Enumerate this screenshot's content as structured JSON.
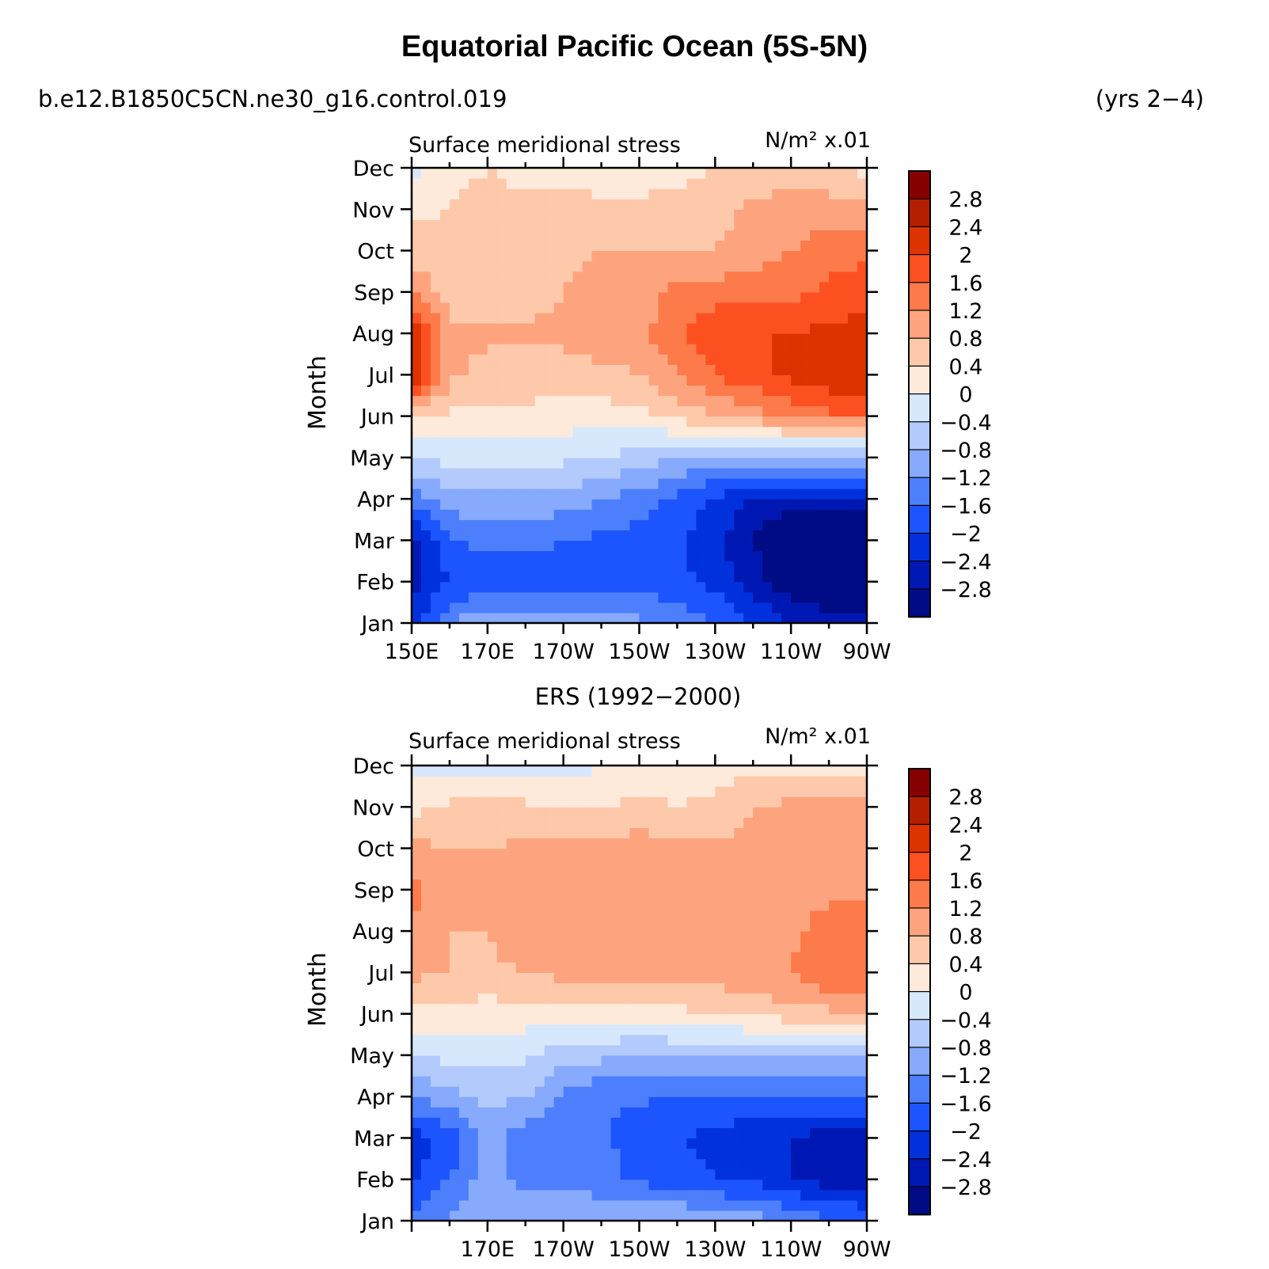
{
  "page": {
    "title": "Equatorial Pacific Ocean (5S-5N)",
    "case_name": "b.e12.B1850C5CN.ne30_g16.control.019",
    "years": "(yrs 2−4)"
  },
  "colorbar": {
    "levels": [
      "2.8",
      "2.4",
      "2",
      "1.6",
      "1.2",
      "0.8",
      "0.4",
      "0",
      "−0.4",
      "−0.8",
      "−1.2",
      "−1.6",
      "−2",
      "−2.4",
      "−2.8"
    ],
    "colors": [
      "#870000",
      "#b51f00",
      "#dd3300",
      "#fd5020",
      "#fd7a4a",
      "#fda47e",
      "#fdc9aa",
      "#feeadb",
      "#d7e8fd",
      "#b3cafd",
      "#87aafd",
      "#4d7ffd",
      "#1c54fd",
      "#0131dd",
      "#0018b3",
      "#000c85"
    ]
  },
  "chart_data": [
    {
      "type": "heatmap",
      "title": "Surface meridional stress",
      "units": "N/m² x.01",
      "xlabel": "",
      "ylabel": "Month",
      "x_tick_labels": [
        "150E",
        "170E",
        "170W",
        "150W",
        "130W",
        "110W",
        "90W"
      ],
      "y_tick_labels": [
        "Jan",
        "Feb",
        "Mar",
        "Apr",
        "May",
        "Jun",
        "Jul",
        "Aug",
        "Sep",
        "Oct",
        "Nov",
        "Dec"
      ],
      "x_range_deg_east": [
        150,
        270
      ],
      "x": [
        150,
        160,
        170,
        180,
        190,
        200,
        210,
        220,
        230,
        240,
        250,
        260,
        270
      ],
      "months": [
        "Jan",
        "Feb",
        "Mar",
        "Apr",
        "May",
        "Jun",
        "Jul",
        "Aug",
        "Sep",
        "Oct",
        "Nov",
        "Dec"
      ],
      "values": [
        [
          -2.2,
          -1.2,
          -0.9,
          -0.9,
          -0.9,
          -1.0,
          -1.1,
          -1.3,
          -1.6,
          -2.0,
          -2.4,
          -2.6,
          -2.6
        ],
        [
          -2.6,
          -2.0,
          -1.8,
          -1.8,
          -1.8,
          -1.8,
          -1.8,
          -1.9,
          -2.1,
          -2.6,
          -3.1,
          -3.3,
          -3.2
        ],
        [
          -2.6,
          -1.6,
          -1.5,
          -1.5,
          -1.6,
          -1.7,
          -1.8,
          -1.9,
          -2.3,
          -2.8,
          -3.3,
          -3.4,
          -3.4
        ],
        [
          -1.5,
          -1.0,
          -0.9,
          -0.9,
          -1.0,
          -1.2,
          -1.4,
          -1.7,
          -2.1,
          -2.5,
          -2.6,
          -2.6,
          -2.5
        ],
        [
          -0.3,
          -0.3,
          -0.3,
          -0.3,
          -0.3,
          -0.4,
          -0.6,
          -0.8,
          -0.9,
          -1.0,
          -1.0,
          -1.0,
          -0.9
        ],
        [
          0.4,
          0.3,
          0.3,
          0.3,
          0.2,
          0.2,
          0.3,
          0.5,
          0.8,
          1.0,
          1.3,
          1.5,
          1.5
        ],
        [
          2.6,
          0.9,
          0.6,
          0.6,
          0.6,
          0.7,
          0.8,
          1.2,
          1.6,
          1.9,
          2.1,
          2.3,
          2.3
        ],
        [
          2.4,
          0.9,
          0.9,
          0.9,
          0.9,
          1.0,
          1.1,
          1.5,
          2.0,
          2.0,
          2.0,
          2.1,
          2.2
        ],
        [
          1.2,
          0.6,
          0.6,
          0.6,
          0.8,
          0.9,
          1.0,
          1.3,
          1.4,
          1.4,
          1.5,
          1.7,
          1.8
        ],
        [
          0.6,
          0.5,
          0.5,
          0.5,
          0.7,
          0.8,
          0.8,
          0.8,
          0.8,
          1.0,
          1.2,
          1.4,
          1.5
        ],
        [
          0.3,
          0.4,
          0.5,
          0.5,
          0.5,
          0.5,
          0.5,
          0.5,
          0.6,
          0.9,
          1.0,
          1.0,
          0.9
        ],
        [
          -0.1,
          0.3,
          0.4,
          0.3,
          0.3,
          0.2,
          0.2,
          0.3,
          0.4,
          0.5,
          0.6,
          0.5,
          0.3
        ]
      ]
    },
    {
      "type": "heatmap",
      "caption": "ERS (1992−2000)",
      "title": "Surface meridional stress",
      "units": "N/m² x.01",
      "xlabel": "",
      "ylabel": "Month",
      "x_tick_labels": [
        "170E",
        "170W",
        "150W",
        "130W",
        "110W",
        "90W"
      ],
      "y_tick_labels": [
        "Jan",
        "Feb",
        "Mar",
        "Apr",
        "May",
        "Jun",
        "Jul",
        "Aug",
        "Sep",
        "Oct",
        "Nov",
        "Dec"
      ],
      "x_range_deg_east": [
        150,
        270
      ],
      "x": [
        150,
        160,
        170,
        180,
        190,
        200,
        210,
        220,
        230,
        240,
        250,
        260,
        270
      ],
      "months": [
        "Jan",
        "Feb",
        "Mar",
        "Apr",
        "May",
        "Jun",
        "Jul",
        "Aug",
        "Sep",
        "Oct",
        "Nov",
        "Dec"
      ],
      "values": [
        [
          -1.6,
          -1.1,
          -0.8,
          -0.9,
          -0.9,
          -0.9,
          -0.8,
          -0.8,
          -0.9,
          -1.0,
          -1.2,
          -1.5,
          -1.7
        ],
        [
          -2.1,
          -1.6,
          -1.0,
          -1.3,
          -1.3,
          -1.4,
          -1.7,
          -1.8,
          -2.0,
          -2.1,
          -2.4,
          -2.6,
          -2.6
        ],
        [
          -2.2,
          -1.9,
          -1.0,
          -1.5,
          -1.4,
          -1.5,
          -1.9,
          -2.0,
          -2.1,
          -2.4,
          -2.4,
          -2.6,
          -2.6
        ],
        [
          -1.3,
          -0.9,
          -0.7,
          -0.8,
          -1.3,
          -1.6,
          -1.5,
          -1.7,
          -1.6,
          -1.6,
          -1.5,
          -1.6,
          -1.6
        ],
        [
          -0.4,
          -0.3,
          -0.3,
          -0.3,
          -0.6,
          -0.7,
          -0.8,
          -0.8,
          -0.8,
          -0.8,
          -0.9,
          -0.9,
          -0.8
        ],
        [
          0.3,
          0.2,
          0.2,
          0.2,
          0.2,
          0.2,
          0.2,
          0.3,
          0.4,
          0.5,
          0.6,
          0.7,
          0.7
        ],
        [
          0.9,
          0.8,
          0.7,
          0.8,
          0.9,
          1.0,
          1.0,
          1.0,
          1.0,
          1.2,
          1.2,
          1.6,
          1.5
        ],
        [
          1.1,
          0.8,
          0.8,
          1.1,
          1.0,
          1.1,
          1.1,
          1.1,
          1.1,
          1.2,
          1.1,
          1.4,
          1.4
        ],
        [
          1.4,
          0.9,
          0.8,
          1.0,
          1.0,
          1.0,
          1.1,
          1.0,
          1.1,
          1.1,
          1.0,
          1.1,
          1.1
        ],
        [
          0.9,
          0.8,
          0.8,
          0.9,
          0.9,
          1.0,
          1.0,
          1.0,
          0.9,
          0.9,
          0.9,
          0.9,
          0.9
        ],
        [
          0.3,
          0.5,
          0.5,
          0.5,
          0.4,
          0.4,
          0.5,
          0.4,
          0.5,
          0.8,
          0.9,
          0.9,
          0.9
        ],
        [
          -0.1,
          -0.2,
          -0.3,
          -0.3,
          -0.2,
          0.0,
          0.1,
          0.2,
          0.2,
          0.3,
          0.3,
          0.3,
          0.2
        ]
      ]
    }
  ]
}
